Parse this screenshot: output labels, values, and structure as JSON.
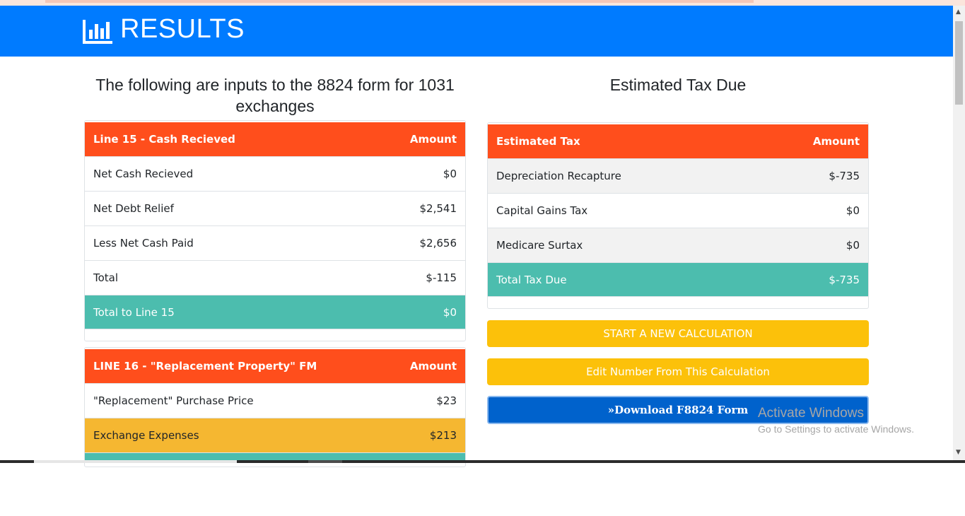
{
  "header": {
    "title": "RESULTS",
    "icon": "bar-chart-icon",
    "color": "#007bff"
  },
  "left": {
    "heading": "The following are inputs to the 8824 form for 1031 exchanges",
    "line15": {
      "head_label": "Line 15 - Cash Recieved",
      "head_amount": "Amount",
      "rows": [
        {
          "label": "Net Cash Recieved",
          "amount": "$0"
        },
        {
          "label": "Net Debt Relief",
          "amount": "$2,541"
        },
        {
          "label": "Less Net Cash Paid",
          "amount": "$2,656"
        },
        {
          "label": "Total",
          "amount": "$-115"
        }
      ],
      "total_label": "Total to Line 15",
      "total_amount": "$0"
    },
    "line16": {
      "head_label": "LINE 16 - \"Replacement Property\" FM",
      "head_amount": "Amount",
      "rows": [
        {
          "label": "\"Replacement\" Purchase Price",
          "amount": "$23"
        },
        {
          "label": "Exchange Expenses",
          "amount": "$213"
        }
      ]
    }
  },
  "right": {
    "heading": "Estimated Tax Due",
    "table": {
      "head_label": "Estimated Tax",
      "head_amount": "Amount",
      "rows": [
        {
          "label": "Depreciation Recapture",
          "amount": "$-735"
        },
        {
          "label": "Capital Gains Tax",
          "amount": "$0"
        },
        {
          "label": "Medicare Surtax",
          "amount": "$0"
        }
      ],
      "total_label": "Total Tax Due",
      "total_amount": "$-735"
    },
    "buttons": {
      "new_calc": "START A NEW CALCULATION",
      "edit": "Edit Number From This Calculation",
      "download_icon": "double-chevron-right-icon",
      "download": "Download F8824 Form"
    }
  },
  "watermark": {
    "line1": "Activate Windows",
    "line2": "Go to Settings to activate Windows."
  },
  "colors": {
    "header_row": "#ff4e1c",
    "total_row": "#4cbdae",
    "highlight_row": "#f5b731",
    "button_yellow": "#fcc10a",
    "button_blue": "#0062cc"
  }
}
